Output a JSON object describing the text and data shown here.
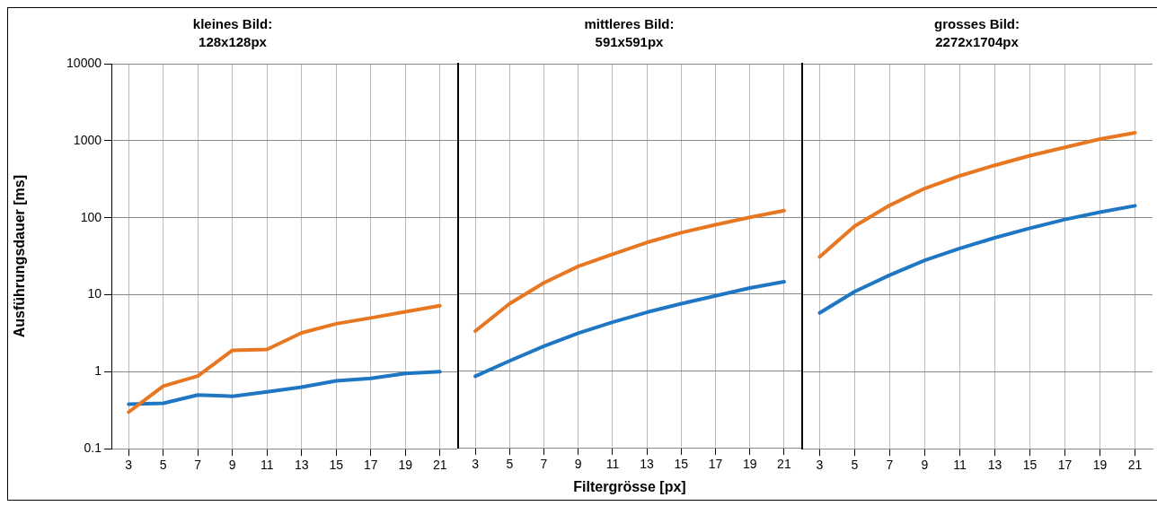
{
  "chart_data": [
    {
      "type": "line",
      "title": "kleines Bild:",
      "subtitle": "128x128px",
      "ylabel": "Ausführungsdauer [ms]",
      "categories": [
        "3",
        "5",
        "7",
        "9",
        "11",
        "13",
        "15",
        "17",
        "19",
        "21"
      ],
      "series": [
        {
          "color": "#e87722",
          "values": [
            0.3,
            0.65,
            0.88,
            1.9,
            1.95,
            3.2,
            4.2,
            5,
            6,
            7.2
          ]
        },
        {
          "color": "#1f77c4",
          "values": [
            0.38,
            0.39,
            0.5,
            0.48,
            0.55,
            0.63,
            0.76,
            0.82,
            0.95,
            1.0
          ]
        }
      ],
      "ylim": [
        0.1,
        10000
      ],
      "yticks": [
        0.1,
        1,
        10,
        100,
        1000,
        10000
      ],
      "log": true,
      "grid": true
    },
    {
      "type": "line",
      "title": "mittleres Bild:",
      "subtitle": "591x591px",
      "xlabel": "Filtergrösse [px]",
      "categories": [
        "3",
        "5",
        "7",
        "9",
        "11",
        "13",
        "15",
        "17",
        "19",
        "21"
      ],
      "series": [
        {
          "color": "#e87722",
          "values": [
            3.3,
            7.5,
            14,
            23,
            33,
            47,
            63,
            80,
            100,
            122
          ]
        },
        {
          "color": "#1f77c4",
          "values": [
            0.85,
            1.35,
            2.1,
            3.1,
            4.3,
            5.8,
            7.5,
            9.5,
            12,
            14.5
          ]
        }
      ],
      "ylim": [
        0.1,
        10000
      ],
      "yticks": [
        0.1,
        1,
        10,
        100,
        1000,
        10000
      ],
      "log": true,
      "grid": true,
      "tick_labels": "x"
    },
    {
      "type": "line",
      "title": "grosses Bild:",
      "subtitle": "2272x1704px",
      "categories": [
        "3",
        "5",
        "7",
        "9",
        "11",
        "13",
        "15",
        "17",
        "19",
        "21"
      ],
      "series": [
        {
          "color": "#e87722",
          "values": [
            31,
            78,
            145,
            240,
            350,
            480,
            640,
            820,
            1050,
            1270
          ]
        },
        {
          "color": "#1f77c4",
          "values": [
            5.8,
            11,
            18,
            28,
            40,
            55,
            73,
            95,
            118,
            143
          ]
        }
      ],
      "ylim": [
        0.1,
        10000
      ],
      "yticks": [
        0.1,
        1,
        10,
        100,
        1000,
        10000
      ],
      "log": true,
      "grid": true,
      "tick_labels": "x"
    }
  ]
}
